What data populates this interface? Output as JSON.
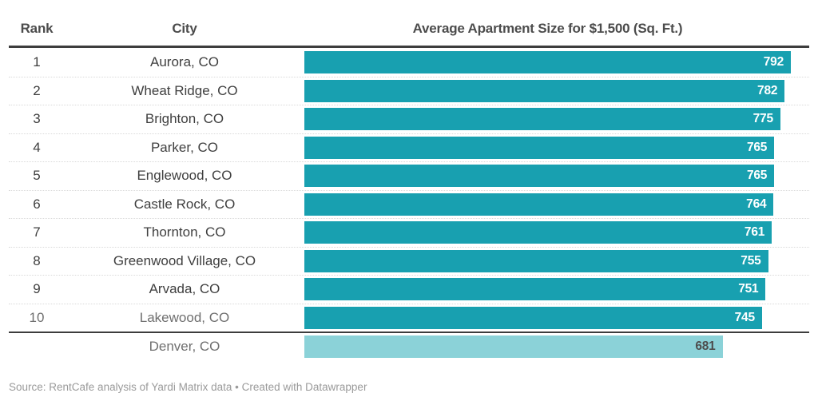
{
  "table": {
    "columns": [
      {
        "key": "rank",
        "label": "Rank"
      },
      {
        "key": "city",
        "label": "City"
      },
      {
        "key": "value",
        "label": "Average Apartment Size for $1,500 (Sq. Ft.)"
      }
    ]
  },
  "chart_data": {
    "type": "bar",
    "orientation": "horizontal",
    "title": "Average Apartment Size for $1,500 (Sq. Ft.)",
    "xlabel": "Average Apartment Size for $1,500 (Sq. Ft.)",
    "ylabel": "City",
    "xlim": [
      0,
      792
    ],
    "value_labels": "inside-end",
    "categories": [
      "Aurora, CO",
      "Wheat Ridge, CO",
      "Brighton, CO",
      "Parker, CO",
      "Englewood, CO",
      "Castle Rock, CO",
      "Thornton, CO",
      "Greenwood Village, CO",
      "Arvada, CO",
      "Lakewood, CO",
      "Denver, CO"
    ],
    "values": [
      792,
      782,
      775,
      765,
      765,
      764,
      761,
      755,
      751,
      745,
      681
    ],
    "rows": [
      {
        "rank": "1",
        "city": "Aurora, CO",
        "value": "792",
        "highlight": false,
        "muted": false
      },
      {
        "rank": "2",
        "city": "Wheat Ridge, CO",
        "value": "782",
        "highlight": false,
        "muted": false
      },
      {
        "rank": "3",
        "city": "Brighton, CO",
        "value": "775",
        "highlight": false,
        "muted": false
      },
      {
        "rank": "4",
        "city": "Parker, CO",
        "value": "765",
        "highlight": false,
        "muted": false
      },
      {
        "rank": "5",
        "city": "Englewood, CO",
        "value": "765",
        "highlight": false,
        "muted": false
      },
      {
        "rank": "6",
        "city": "Castle Rock, CO",
        "value": "764",
        "highlight": false,
        "muted": false
      },
      {
        "rank": "7",
        "city": "Thornton, CO",
        "value": "761",
        "highlight": false,
        "muted": false
      },
      {
        "rank": "8",
        "city": "Greenwood Village, CO",
        "value": "755",
        "highlight": false,
        "muted": false
      },
      {
        "rank": "9",
        "city": "Arvada, CO",
        "value": "751",
        "highlight": false,
        "muted": false
      },
      {
        "rank": "10",
        "city": "Lakewood, CO",
        "value": "745",
        "highlight": false,
        "muted": true
      },
      {
        "rank": "",
        "city": "Denver, CO",
        "value": "681",
        "highlight": true,
        "muted": true
      }
    ]
  },
  "colors": {
    "bar": "#18a0b0",
    "bar_highlight": "#8bd2d8",
    "header_text": "#4c4c4c",
    "row_text": "#3f3f3f",
    "row_text_muted": "#6f6f6f",
    "bar_label": "#ffffff",
    "rule": "#3d3d3d",
    "separator": "#dadada",
    "footer_text": "#9a9a9a",
    "background": "#ffffff"
  },
  "footer": {
    "source_note": "Source: RentCafe analysis of Yardi Matrix data • Created with Datawrapper"
  }
}
